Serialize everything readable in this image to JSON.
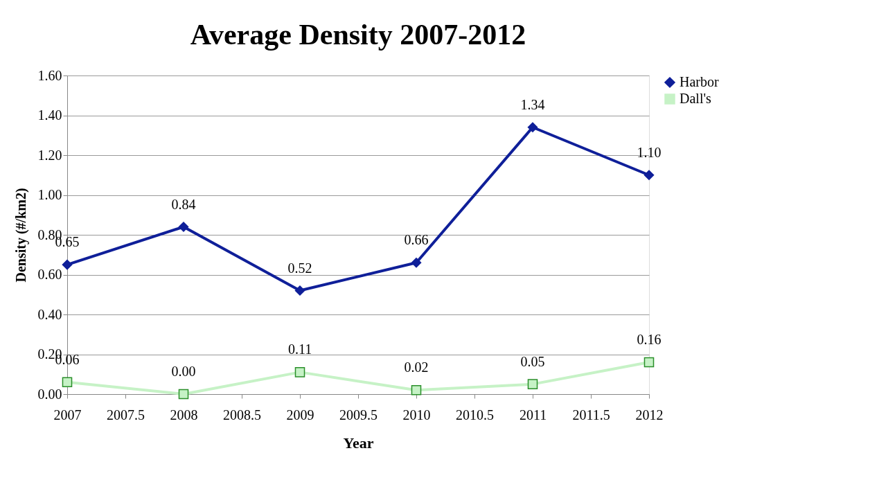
{
  "chart_data": {
    "type": "line",
    "title": "Average Density 2007-2012",
    "xlabel": "Year",
    "ylabel": "Density (#/km2)",
    "x": [
      2007,
      2008,
      2009,
      2010,
      2011,
      2012
    ],
    "series": [
      {
        "name": "Harbor",
        "color": "#0f1f99",
        "marker": "diamond",
        "values": [
          0.65,
          0.84,
          0.52,
          0.66,
          1.34,
          1.1
        ],
        "value_labels": [
          "0.65",
          "0.84",
          "0.52",
          "0.66",
          "1.34",
          "1.10"
        ]
      },
      {
        "name": "Dall's",
        "color": "#c6f2c6",
        "marker": "square",
        "values": [
          0.06,
          0.0,
          0.11,
          0.02,
          0.05,
          0.16
        ],
        "value_labels": [
          "0.06",
          "0.00",
          "0.11",
          "0.02",
          "0.05",
          "0.16"
        ]
      }
    ],
    "xlim": [
      2007,
      2012
    ],
    "xticks": [
      2007,
      2007.5,
      2008,
      2008.5,
      2009,
      2009.5,
      2010,
      2010.5,
      2011,
      2011.5,
      2012
    ],
    "ylim": [
      0,
      1.6
    ],
    "yticks": [
      {
        "value": 0,
        "label": "0.00"
      },
      {
        "value": 0.2,
        "label": "0.20"
      },
      {
        "value": 0.4,
        "label": "0.40"
      },
      {
        "value": 0.6,
        "label": "0.60"
      },
      {
        "value": 0.8,
        "label": "0.80"
      },
      {
        "value": 1.0,
        "label": "1.00"
      },
      {
        "value": 1.2,
        "label": "1.20"
      },
      {
        "value": 1.4,
        "label": "1.40"
      },
      {
        "value": 1.6,
        "label": "1.60"
      }
    ],
    "grid": "y",
    "legend": "right",
    "line_style": "solid"
  }
}
